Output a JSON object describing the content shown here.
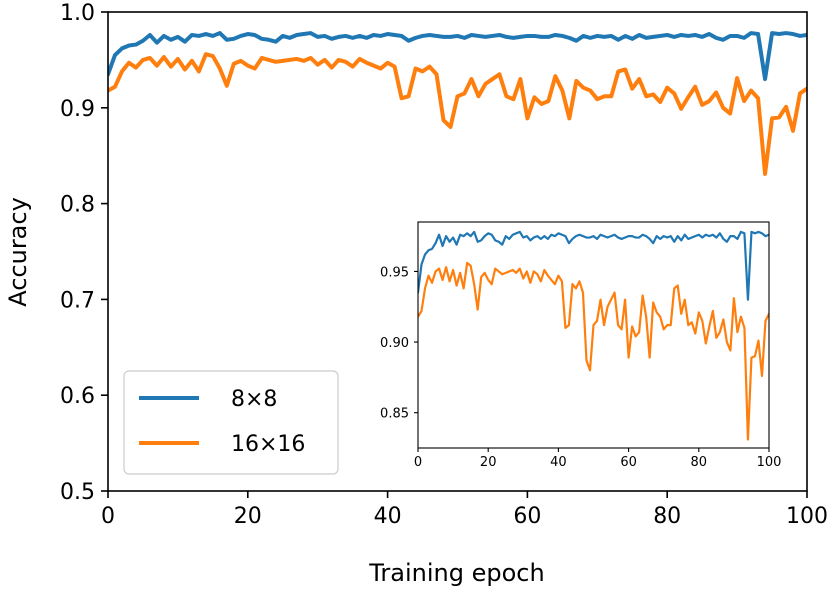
{
  "chart_data": [
    {
      "type": "line",
      "title": "",
      "xlabel": "Training epoch",
      "ylabel": "Accuracy",
      "xlim": [
        0,
        100
      ],
      "ylim": [
        0.5,
        1.0
      ],
      "xticks": [
        0,
        20,
        40,
        60,
        80,
        100
      ],
      "yticks": [
        0.5,
        0.6,
        0.7,
        0.8,
        0.9,
        1.0
      ],
      "xtick_labels": [
        "0",
        "20",
        "40",
        "60",
        "80",
        "100"
      ],
      "ytick_labels": [
        "0.5",
        "0.6",
        "0.7",
        "0.8",
        "0.9",
        "1.0"
      ],
      "grid": false,
      "legend_position": "lower-left",
      "x": [
        0,
        1,
        2,
        3,
        4,
        5,
        6,
        7,
        8,
        9,
        10,
        11,
        12,
        13,
        14,
        15,
        16,
        17,
        18,
        19,
        20,
        21,
        22,
        23,
        24,
        25,
        26,
        27,
        28,
        29,
        30,
        31,
        32,
        33,
        34,
        35,
        36,
        37,
        38,
        39,
        40,
        41,
        42,
        43,
        44,
        45,
        46,
        47,
        48,
        49,
        50,
        51,
        52,
        53,
        54,
        55,
        56,
        57,
        58,
        59,
        60,
        61,
        62,
        63,
        64,
        65,
        66,
        67,
        68,
        69,
        70,
        71,
        72,
        73,
        74,
        75,
        76,
        77,
        78,
        79,
        80,
        81,
        82,
        83,
        84,
        85,
        86,
        87,
        88,
        89,
        90,
        91,
        92,
        93,
        94,
        95,
        96,
        97,
        98,
        99,
        100
      ],
      "series": [
        {
          "name": "8×8",
          "color": "#1f77b4",
          "values": [
            0.935,
            0.955,
            0.962,
            0.965,
            0.966,
            0.97,
            0.976,
            0.968,
            0.975,
            0.971,
            0.974,
            0.969,
            0.976,
            0.975,
            0.977,
            0.975,
            0.978,
            0.971,
            0.972,
            0.975,
            0.977,
            0.976,
            0.972,
            0.971,
            0.969,
            0.975,
            0.973,
            0.976,
            0.977,
            0.978,
            0.974,
            0.975,
            0.972,
            0.974,
            0.975,
            0.973,
            0.975,
            0.973,
            0.976,
            0.975,
            0.977,
            0.976,
            0.975,
            0.97,
            0.973,
            0.975,
            0.976,
            0.975,
            0.974,
            0.974,
            0.975,
            0.973,
            0.976,
            0.975,
            0.974,
            0.975,
            0.976,
            0.974,
            0.973,
            0.974,
            0.975,
            0.975,
            0.974,
            0.974,
            0.976,
            0.975,
            0.973,
            0.97,
            0.975,
            0.973,
            0.975,
            0.974,
            0.975,
            0.971,
            0.975,
            0.972,
            0.976,
            0.973,
            0.974,
            0.975,
            0.976,
            0.974,
            0.976,
            0.975,
            0.976,
            0.974,
            0.977,
            0.973,
            0.971,
            0.975,
            0.975,
            0.973,
            0.978,
            0.977,
            0.93,
            0.978,
            0.977,
            0.978,
            0.977,
            0.975,
            0.976
          ]
        },
        {
          "name": "16×16",
          "color": "#ff7f0e",
          "values": [
            0.918,
            0.922,
            0.938,
            0.947,
            0.942,
            0.95,
            0.952,
            0.944,
            0.953,
            0.943,
            0.951,
            0.94,
            0.949,
            0.938,
            0.956,
            0.954,
            0.941,
            0.923,
            0.946,
            0.949,
            0.944,
            0.941,
            0.952,
            0.95,
            0.948,
            0.949,
            0.95,
            0.951,
            0.949,
            0.952,
            0.945,
            0.95,
            0.942,
            0.95,
            0.948,
            0.943,
            0.951,
            0.947,
            0.944,
            0.941,
            0.947,
            0.943,
            0.91,
            0.912,
            0.941,
            0.938,
            0.943,
            0.935,
            0.887,
            0.88,
            0.912,
            0.915,
            0.93,
            0.912,
            0.925,
            0.93,
            0.935,
            0.912,
            0.909,
            0.93,
            0.889,
            0.911,
            0.904,
            0.907,
            0.933,
            0.918,
            0.889,
            0.928,
            0.921,
            0.918,
            0.909,
            0.912,
            0.912,
            0.938,
            0.94,
            0.92,
            0.93,
            0.912,
            0.914,
            0.906,
            0.921,
            0.915,
            0.899,
            0.911,
            0.922,
            0.903,
            0.907,
            0.916,
            0.9,
            0.894,
            0.931,
            0.907,
            0.918,
            0.91,
            0.831,
            0.889,
            0.89,
            0.901,
            0.876,
            0.915,
            0.92
          ]
        }
      ]
    },
    {
      "type": "line",
      "title": "",
      "xlabel": "",
      "ylabel": "",
      "xlim": [
        0,
        100
      ],
      "ylim": [
        0.825,
        0.985
      ],
      "xticks": [
        0,
        20,
        40,
        60,
        80,
        100
      ],
      "yticks": [
        0.85,
        0.9,
        0.95
      ],
      "xtick_labels": [
        "0",
        "20",
        "40",
        "60",
        "80",
        "100"
      ],
      "ytick_labels": [
        "0.85",
        "0.90",
        "0.95"
      ],
      "grid": false,
      "note_series": "same series as main chart"
    }
  ],
  "legend": {
    "items": [
      {
        "label": "8×8",
        "color": "#1f77b4"
      },
      {
        "label": "16×16",
        "color": "#ff7f0e"
      }
    ]
  }
}
